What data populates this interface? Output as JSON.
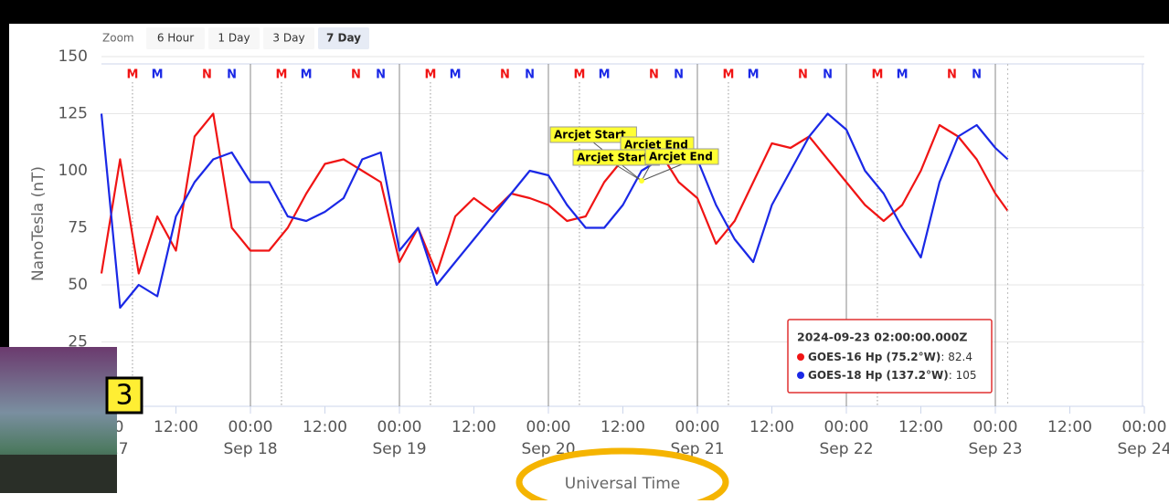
{
  "chart_data": {
    "type": "line",
    "zoom": {
      "label": "Zoom",
      "buttons": [
        "6 Hour",
        "1 Day",
        "3 Day",
        "7 Day"
      ],
      "selected": 3
    },
    "ylabel": "NanoTesla (nT)",
    "xlabel": "Universal Time",
    "ylim": [
      0,
      150
    ],
    "yticks": [
      25,
      50,
      75,
      100,
      125,
      150
    ],
    "xlim": [
      "2024-09-17T00:00",
      "2024-09-24T00:00"
    ],
    "xticks": [
      {
        "value": "2024-09-17T00:00",
        "label": "00:00",
        "date": "Sep 17"
      },
      {
        "value": "2024-09-17T12:00",
        "label": "12:00"
      },
      {
        "value": "2024-09-18T00:00",
        "label": "00:00",
        "date": "Sep 18"
      },
      {
        "value": "2024-09-18T12:00",
        "label": "12:00"
      },
      {
        "value": "2024-09-19T00:00",
        "label": "00:00",
        "date": "Sep 19"
      },
      {
        "value": "2024-09-19T12:00",
        "label": "12:00"
      },
      {
        "value": "2024-09-20T00:00",
        "label": "00:00",
        "date": "Sep 20"
      },
      {
        "value": "2024-09-20T12:00",
        "label": "12:00"
      },
      {
        "value": "2024-09-21T00:00",
        "label": "00:00",
        "date": "Sep 21"
      },
      {
        "value": "2024-09-21T12:00",
        "label": "12:00"
      },
      {
        "value": "2024-09-22T00:00",
        "label": "00:00",
        "date": "Sep 22"
      },
      {
        "value": "2024-09-22T12:00",
        "label": "12:00"
      },
      {
        "value": "2024-09-23T00:00",
        "label": "00:00",
        "date": "Sep 23"
      },
      {
        "value": "2024-09-23T12:00",
        "label": "12:00"
      },
      {
        "value": "2024-09-24T00:00",
        "label": "00:00",
        "date": "Sep 24"
      }
    ],
    "x": [
      "2024-09-17T00:00",
      "2024-09-17T03:00",
      "2024-09-17T06:00",
      "2024-09-17T09:00",
      "2024-09-17T12:00",
      "2024-09-17T15:00",
      "2024-09-17T18:00",
      "2024-09-17T21:00",
      "2024-09-18T00:00",
      "2024-09-18T03:00",
      "2024-09-18T06:00",
      "2024-09-18T09:00",
      "2024-09-18T12:00",
      "2024-09-18T15:00",
      "2024-09-18T18:00",
      "2024-09-18T21:00",
      "2024-09-19T00:00",
      "2024-09-19T03:00",
      "2024-09-19T06:00",
      "2024-09-19T09:00",
      "2024-09-19T12:00",
      "2024-09-19T15:00",
      "2024-09-19T18:00",
      "2024-09-19T21:00",
      "2024-09-20T00:00",
      "2024-09-20T03:00",
      "2024-09-20T06:00",
      "2024-09-20T09:00",
      "2024-09-20T12:00",
      "2024-09-20T15:00",
      "2024-09-20T18:00",
      "2024-09-20T21:00",
      "2024-09-21T00:00",
      "2024-09-21T03:00",
      "2024-09-21T06:00",
      "2024-09-21T09:00",
      "2024-09-21T12:00",
      "2024-09-21T15:00",
      "2024-09-21T18:00",
      "2024-09-21T21:00",
      "2024-09-22T00:00",
      "2024-09-22T03:00",
      "2024-09-22T06:00",
      "2024-09-22T09:00",
      "2024-09-22T12:00",
      "2024-09-22T15:00",
      "2024-09-22T18:00",
      "2024-09-22T21:00",
      "2024-09-23T00:00",
      "2024-09-23T02:00"
    ],
    "series": [
      {
        "name": "GOES-16 Hp (75.2°W)",
        "color": "#f01414",
        "values": [
          55,
          105,
          55,
          80,
          65,
          115,
          125,
          75,
          65,
          65,
          75,
          90,
          103,
          105,
          100,
          95,
          60,
          75,
          55,
          80,
          88,
          82,
          90,
          88,
          85,
          78,
          80,
          95,
          105,
          110,
          108,
          95,
          88,
          68,
          78,
          95,
          112,
          110,
          115,
          105,
          95,
          85,
          78,
          85,
          100,
          120,
          115,
          105,
          90,
          82.4
        ]
      },
      {
        "name": "GOES-18 Hp (137.2°W)",
        "color": "#1a28e6",
        "values": [
          125,
          40,
          50,
          45,
          80,
          95,
          105,
          108,
          95,
          95,
          80,
          78,
          82,
          88,
          105,
          108,
          65,
          75,
          50,
          60,
          70,
          80,
          90,
          100,
          98,
          85,
          75,
          75,
          85,
          100,
          105,
          110,
          105,
          85,
          70,
          60,
          85,
          100,
          115,
          125,
          118,
          100,
          90,
          75,
          62,
          95,
          115,
          120,
          110,
          105
        ]
      }
    ],
    "markers": [
      {
        "text": "M",
        "color": "#f01414",
        "x": "2024-09-17T05:00"
      },
      {
        "text": "M",
        "color": "#1a28e6",
        "x": "2024-09-17T09:00"
      },
      {
        "text": "N",
        "color": "#f01414",
        "x": "2024-09-17T17:00"
      },
      {
        "text": "N",
        "color": "#1a28e6",
        "x": "2024-09-17T21:00"
      },
      {
        "text": "M",
        "color": "#f01414",
        "x": "2024-09-18T05:00"
      },
      {
        "text": "M",
        "color": "#1a28e6",
        "x": "2024-09-18T09:00"
      },
      {
        "text": "N",
        "color": "#f01414",
        "x": "2024-09-18T17:00"
      },
      {
        "text": "N",
        "color": "#1a28e6",
        "x": "2024-09-18T21:00"
      },
      {
        "text": "M",
        "color": "#f01414",
        "x": "2024-09-19T05:00"
      },
      {
        "text": "M",
        "color": "#1a28e6",
        "x": "2024-09-19T09:00"
      },
      {
        "text": "N",
        "color": "#f01414",
        "x": "2024-09-19T17:00"
      },
      {
        "text": "N",
        "color": "#1a28e6",
        "x": "2024-09-19T21:00"
      },
      {
        "text": "M",
        "color": "#f01414",
        "x": "2024-09-20T05:00"
      },
      {
        "text": "M",
        "color": "#1a28e6",
        "x": "2024-09-20T09:00"
      },
      {
        "text": "N",
        "color": "#f01414",
        "x": "2024-09-20T17:00"
      },
      {
        "text": "N",
        "color": "#1a28e6",
        "x": "2024-09-20T21:00"
      },
      {
        "text": "M",
        "color": "#f01414",
        "x": "2024-09-21T05:00"
      },
      {
        "text": "M",
        "color": "#1a28e6",
        "x": "2024-09-21T09:00"
      },
      {
        "text": "N",
        "color": "#f01414",
        "x": "2024-09-21T17:00"
      },
      {
        "text": "N",
        "color": "#1a28e6",
        "x": "2024-09-21T21:00"
      },
      {
        "text": "M",
        "color": "#f01414",
        "x": "2024-09-22T05:00"
      },
      {
        "text": "M",
        "color": "#1a28e6",
        "x": "2024-09-22T09:00"
      },
      {
        "text": "N",
        "color": "#f01414",
        "x": "2024-09-22T17:00"
      },
      {
        "text": "N",
        "color": "#1a28e6",
        "x": "2024-09-22T21:00"
      }
    ],
    "flags": [
      "Arcjet Start",
      "Arcjet End",
      "Arcjet Start",
      "Arcjet End"
    ],
    "tooltip": {
      "title": "2024-09-23 02:00:00.000Z",
      "separator": ": "
    },
    "badge": "3"
  }
}
